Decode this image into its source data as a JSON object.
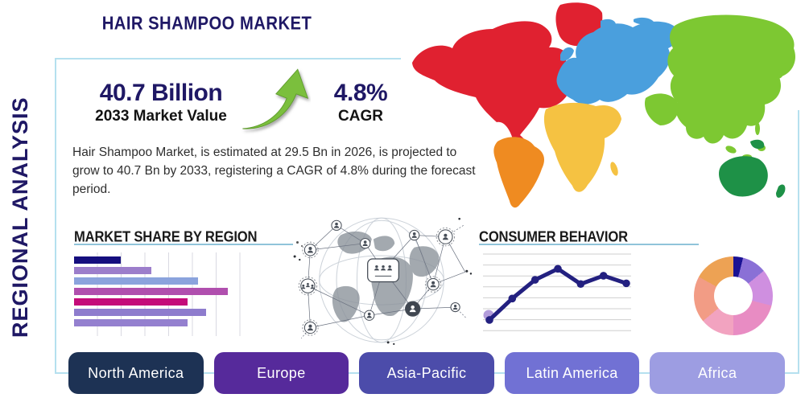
{
  "title": "HAIR SHAMPOO MARKET",
  "side_label": "REGIONAL ANALYSIS",
  "stats": {
    "market_value": "40.7 Billion",
    "market_value_caption": "2033 Market Value",
    "cagr_value": "4.8%",
    "cagr_caption": "CAGR"
  },
  "description": "Hair Shampoo Market, is estimated at 29.5 Bn in 2026, is projected to grow to 40.7 Bn by 2033, registering a CAGR of 4.8% during the forecast period.",
  "colors": {
    "navy_text": "#1f1865",
    "heading_text": "#1a1a1a",
    "body_text": "#2e2e2e",
    "card_border": "#b5e0ef",
    "underline": "#90c4da",
    "arrow_green": "#7bbf3d",
    "grid_line": "#d9d9e2"
  },
  "map": {
    "colors": {
      "north_america": "#e02130",
      "south_america": "#ef8b21",
      "europe": "#4a9fdd",
      "africa": "#f5c242",
      "asia": "#7dc832",
      "oceania": "#1e9147"
    }
  },
  "regions": [
    {
      "label": "North America",
      "color": "#1d3254"
    },
    {
      "label": "Europe",
      "color": "#562a9b"
    },
    {
      "label": "Asia-Pacific",
      "color": "#4c4caa"
    },
    {
      "label": "Latin America",
      "color": "#7171d4"
    },
    {
      "label": "Africa",
      "color": "#9d9de2"
    }
  ],
  "chart_data": [
    {
      "type": "bar",
      "title": "MARKET SHARE BY REGION",
      "orientation": "horizontal",
      "categories": [],
      "values": [
        28,
        46,
        74,
        92,
        68,
        79,
        68
      ],
      "xlim": [
        0,
        100
      ],
      "grid": "vertical",
      "bar_colors": [
        "#150e7e",
        "#9c7ecb",
        "#8ba3dd",
        "#b04fae",
        "#c40b79",
        "#8e7ccd",
        "#9480cf"
      ]
    },
    {
      "type": "line",
      "title": "CONSUMER BEHAVIOR",
      "x": [
        1,
        2,
        3,
        4,
        5,
        6,
        7
      ],
      "values": [
        14,
        45,
        72,
        88,
        66,
        78,
        67
      ],
      "ylim": [
        0,
        100
      ],
      "grid": "horizontal",
      "line_color": "#232080",
      "first_point_halo_color": "#b39ddb"
    },
    {
      "type": "pie",
      "donut": true,
      "start_angle_deg": 0,
      "slices": [
        {
          "value": 4,
          "color": "#1a1294"
        },
        {
          "value": 10,
          "color": "#8a70d6"
        },
        {
          "value": 15,
          "color": "#cf8fe0"
        },
        {
          "value": 21,
          "color": "#e88cc3"
        },
        {
          "value": 14,
          "color": "#f2a3c0"
        },
        {
          "value": 19,
          "color": "#f29c85"
        },
        {
          "value": 17,
          "color": "#eda254"
        }
      ]
    }
  ]
}
